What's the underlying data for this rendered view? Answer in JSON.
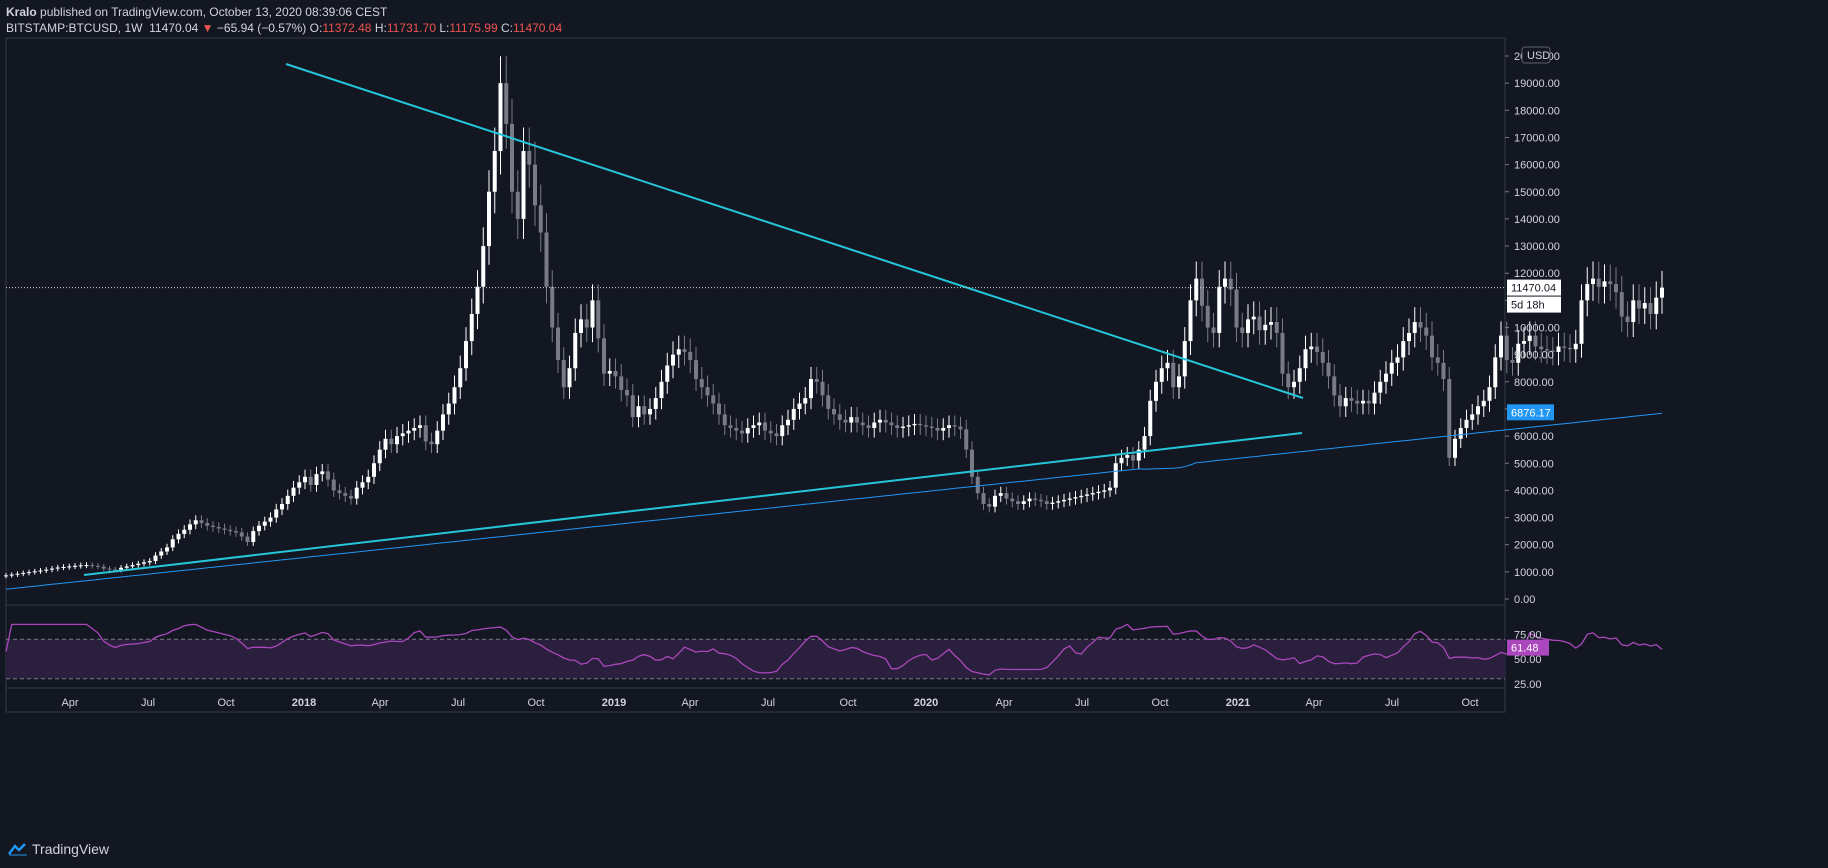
{
  "header": {
    "user": "Kralo",
    "published_text": " published on TradingView.com, October 13, 2020 08:39:06 CEST",
    "symbol": "BITSTAMP:BTCUSD",
    "interval": "1W",
    "last": "11470.04",
    "change": "−65.94 (−0.57%)",
    "o_label": "O:",
    "o_val": "11372.48",
    "h_label": "H:",
    "h_val": "11731.70",
    "l_label": "L:",
    "l_val": "11175.99",
    "c_label": "C:",
    "c_val": "11470.04"
  },
  "footer": {
    "brand": "TradingView"
  },
  "colors": {
    "background": "#131722",
    "trendline": "#26c6da",
    "ma": "#2196f3",
    "rsi": "#ab47bc",
    "candle_up": "#ffffff",
    "candle_down": "#787b86"
  },
  "chart_data": {
    "type": "candlestick",
    "currency": "USD",
    "price_axis": {
      "ticks": [
        "0.00",
        "1000.00",
        "2000.00",
        "3000.00",
        "4000.00",
        "5000.00",
        "6000.00",
        "7000.00",
        "8000.00",
        "9000.00",
        "10000.00",
        "11000.00",
        "12000.00",
        "13000.00",
        "14000.00",
        "15000.00",
        "16000.00",
        "17000.00",
        "18000.00",
        "19000.00",
        "20000.00"
      ],
      "ylim": [
        0,
        20000
      ]
    },
    "time_axis": {
      "labels": [
        "Apr",
        "Jul",
        "Oct",
        "2018",
        "Apr",
        "Jul",
        "Oct",
        "2019",
        "Apr",
        "Jul",
        "Oct",
        "2020",
        "Apr",
        "Jul",
        "Oct",
        "2021",
        "Apr",
        "Jul",
        "Oct"
      ],
      "bold": [
        "2018",
        "2019",
        "2020",
        "2021"
      ]
    },
    "last_price_label": "11470.04",
    "countdown_label": "5d 18h",
    "ma_price_label": "6876.17",
    "rsi": {
      "ticks": [
        "75.00",
        "50.00",
        "25.00"
      ],
      "levels": [
        70,
        30
      ],
      "last_label": "61.48"
    },
    "weekly_close": [
      870,
      900,
      930,
      960,
      990,
      1020,
      1050,
      1080,
      1120,
      1160,
      1180,
      1200,
      1220,
      1240,
      1250,
      1220,
      1190,
      1120,
      1090,
      1080,
      1150,
      1200,
      1250,
      1300,
      1350,
      1400,
      1600,
      1750,
      1900,
      2200,
      2400,
      2550,
      2750,
      2900,
      2800,
      2700,
      2650,
      2600,
      2550,
      2500,
      2450,
      2300,
      2100,
      2500,
      2700,
      2850,
      3000,
      3300,
      3500,
      3800,
      4100,
      4300,
      4500,
      4200,
      4600,
      4700,
      4400,
      4000,
      3900,
      3800,
      3700,
      4100,
      4300,
      4500,
      5000,
      5500,
      5900,
      5700,
      6000,
      6100,
      6200,
      6300,
      6400,
      5800,
      5700,
      6200,
      6800,
      7200,
      7800,
      8500,
      9500,
      10500,
      11500,
      13000,
      15000,
      16500,
      19000,
      17500,
      15000,
      14000,
      16500,
      16000,
      14500,
      13500,
      11500,
      10000,
      8800,
      7800,
      8500,
      9800,
      10300,
      10000,
      11000,
      9600,
      8300,
      8400,
      8200,
      7700,
      7500,
      6700,
      7100,
      6800,
      7000,
      7400,
      8000,
      8600,
      9000,
      9200,
      9100,
      8800,
      8100,
      7800,
      7500,
      7200,
      6800,
      6400,
      6300,
      6200,
      6100,
      6300,
      6400,
      6500,
      6200,
      6100,
      6000,
      6400,
      6600,
      7000,
      7200,
      7400,
      8100,
      8000,
      7500,
      7000,
      6800,
      6600,
      6500,
      6700,
      6500,
      6400,
      6300,
      6500,
      6600,
      6500,
      6400,
      6300,
      6350,
      6400,
      6450,
      6400,
      6350,
      6300,
      6200,
      6300,
      6400,
      6350,
      6250,
      5500,
      4500,
      3900,
      3500,
      3400,
      3800,
      3900,
      3700,
      3600,
      3500,
      3600,
      3700,
      3650,
      3600,
      3500,
      3550,
      3600,
      3650,
      3700,
      3750,
      3800,
      3850,
      3900,
      3950,
      4000,
      4100,
      5000,
      5200,
      5300,
      5100,
      5500,
      6000,
      7300,
      8000,
      8500,
      8700,
      7800,
      8200,
      9500,
      11000,
      11800,
      10800,
      10000,
      9800,
      11500,
      11800,
      11400,
      10000,
      9800,
      10300,
      10400,
      9900,
      10100,
      10200,
      9800,
      8300,
      7800,
      8000,
      8500,
      9200,
      9300,
      9100,
      8700,
      8200,
      7500,
      7100,
      7400,
      7300,
      7200,
      7300,
      7200,
      7600,
      8000,
      8300,
      8700,
      8900,
      9500,
      9800,
      10200,
      10000,
      9700,
      8900,
      8700,
      8100,
      5200,
      5900,
      6300,
      6600,
      6800,
      7100,
      7300,
      7800,
      8900,
      9700,
      8800,
      8700,
      9400,
      9500,
      9700,
      9300,
      9200,
      9150,
      9100,
      9300,
      9250,
      9200,
      9400,
      11000,
      11600,
      11800,
      11500,
      11700,
      11600,
      11300,
      10400,
      10200,
      11000,
      10700,
      10900,
      10500,
      11100,
      11470
    ],
    "trendlines": [
      {
        "from": [
          "2017-12-17",
          19700
        ],
        "to": [
          "2021-03-22",
          7500
        ]
      },
      {
        "from": [
          "2017-04-01",
          900
        ],
        "to": [
          "2021-03-22",
          6100
        ]
      }
    ]
  }
}
